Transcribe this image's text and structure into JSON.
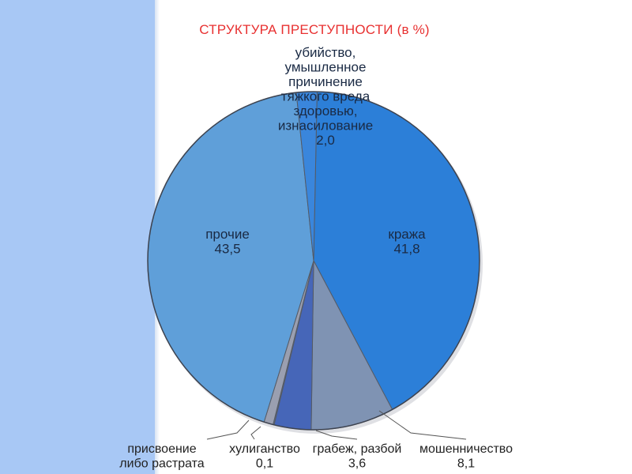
{
  "chart_data": {
    "type": "pie",
    "title": "СТРУКТУРА ПРЕСТУПНОСТИ (в %)",
    "slices": [
      {
        "label_lines": [
          "кража",
          "41,8"
        ],
        "value": 41.8,
        "color": "#2c7fd8"
      },
      {
        "label_lines": [
          "мошенничество",
          "8,1"
        ],
        "value": 8.1,
        "color": "#7f93b3"
      },
      {
        "label_lines": [
          "грабеж, разбой",
          "3,6"
        ],
        "value": 3.6,
        "color": "#4666b8"
      },
      {
        "label_lines": [
          "хулиганство",
          "0,1"
        ],
        "value": 0.1,
        "color": "#5a6a8a"
      },
      {
        "label_lines": [
          "присвоение",
          "либо растрата"
        ],
        "value": 0.9,
        "color": "#9a9fb0"
      },
      {
        "label_lines": [
          "прочие",
          "43,5"
        ],
        "value": 43.5,
        "color": "#5f9fd9"
      },
      {
        "label_lines": [
          "убийство,",
          "умышленное",
          "причинение",
          "тяжкого вреда",
          "здоровью,",
          "изнасилование",
          "2,0"
        ],
        "value": 2.0,
        "color": "#3a86dc"
      }
    ],
    "legend": "none"
  }
}
